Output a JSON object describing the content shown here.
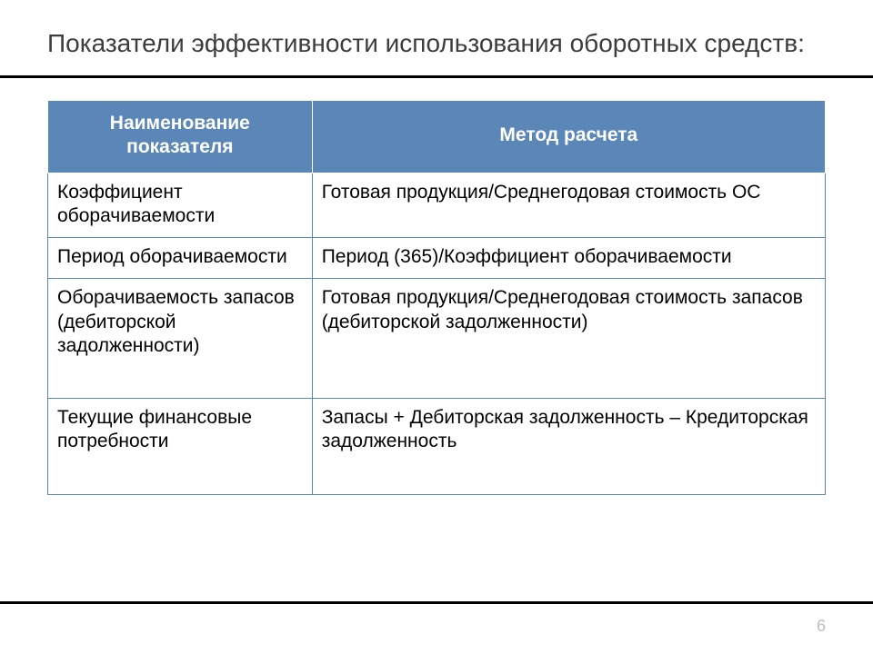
{
  "slide": {
    "title": "Показатели эффективности использования оборотных средств:",
    "page_number": "6"
  },
  "table": {
    "type": "table",
    "header_bg": "#5b86b8",
    "header_fg": "#ffffff",
    "border_color": "#5b86b8",
    "cell_bg": "#ffffff",
    "font_size_pt": 16,
    "columns": [
      {
        "label": "Наименование показателя",
        "width_pct": 34,
        "align": "left"
      },
      {
        "label": "Метод расчета",
        "width_pct": 66,
        "align": "left"
      }
    ],
    "rows": [
      [
        "Коэффициент оборачиваемости",
        "Готовая продукция/Среднегодовая стоимость ОС"
      ],
      [
        "Период оборачиваемости",
        "Период (365)/Коэффициент оборачиваемости"
      ],
      [
        "Оборачиваемость запасов (дебиторской задолженности)",
        "Готовая продукция/Среднегодовая стоимость запасов (дебиторской задолженности)"
      ],
      [
        "Текущие финансовые потребности",
        "Запасы + Дебиторская задолженность – Кредиторская задолженность"
      ]
    ]
  },
  "style": {
    "background_color": "#ffffff",
    "title_color": "#3d3d3d",
    "rule_color": "#000000",
    "page_num_color": "#bfbfbf"
  }
}
